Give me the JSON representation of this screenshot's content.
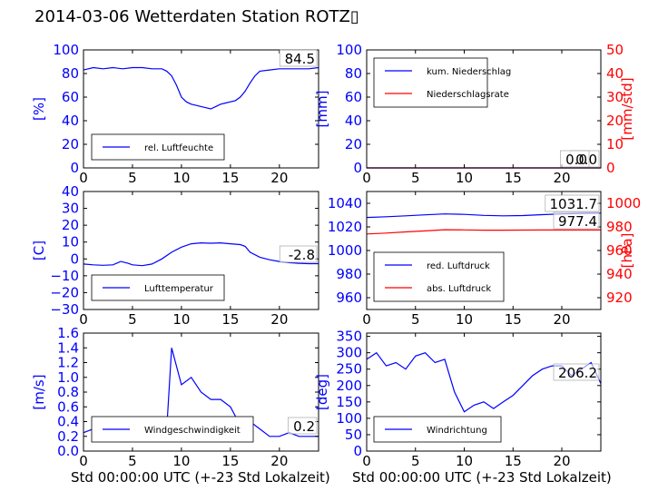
{
  "title": "2014-03-06 Wetterdaten Station ROTZ▯",
  "colors": {
    "blue": "#0000ff",
    "red": "#ff0000",
    "axis": "#000000"
  },
  "xlabel": "Std 00:00:00 UTC (+-23 Std Lokalzeit)",
  "chart_data": [
    {
      "id": "humidity",
      "type": "line",
      "xlim": [
        0,
        24
      ],
      "ylim": [
        0,
        100
      ],
      "xticks": [
        0,
        5,
        10,
        15,
        20
      ],
      "xtick_labels": [
        "0",
        "5",
        "10",
        "15",
        "20"
      ],
      "yticks": [
        0,
        20,
        40,
        60,
        80,
        100
      ],
      "ytick_labels": [
        "0",
        "20",
        "40",
        "60",
        "80",
        "100"
      ],
      "ylabel": "[%]",
      "ylabel_color": "blue",
      "series": [
        {
          "name": "rel. Luftfeuchte",
          "color": "blue",
          "x": [
            0,
            1,
            2,
            3,
            4,
            5,
            6,
            7,
            8,
            8.5,
            9,
            9.5,
            10,
            10.5,
            11,
            11.5,
            12,
            12.5,
            13,
            13.5,
            14,
            14.5,
            15,
            15.5,
            16,
            16.5,
            17,
            17.5,
            18,
            19,
            20,
            21,
            22,
            23,
            24
          ],
          "y": [
            83,
            85,
            84,
            85,
            84,
            85,
            85,
            84,
            84,
            82,
            78,
            70,
            60,
            56,
            54,
            53,
            52,
            51,
            50,
            52,
            54,
            55,
            56,
            57,
            60,
            65,
            72,
            78,
            82,
            83,
            84,
            84,
            84,
            84,
            85
          ]
        }
      ],
      "annotation": "84.5",
      "legend": "bottom-left"
    },
    {
      "id": "precip",
      "type": "line",
      "xlim": [
        0,
        24
      ],
      "ylim": [
        0,
        100
      ],
      "y2lim": [
        0,
        50
      ],
      "xticks": [
        0,
        5,
        10,
        15,
        20
      ],
      "xtick_labels": [
        "0",
        "5",
        "10",
        "15",
        "20"
      ],
      "yticks": [
        0,
        20,
        40,
        60,
        80,
        100
      ],
      "ytick_labels": [
        "0",
        "20",
        "40",
        "60",
        "80",
        "100"
      ],
      "y2ticks": [
        0,
        10,
        20,
        30,
        40,
        50
      ],
      "y2tick_labels": [
        "0",
        "10",
        "20",
        "30",
        "40",
        "50"
      ],
      "ylabel": "[mm]",
      "ylabel_color": "blue",
      "y2label": "[mm/std]",
      "y2label_color": "red",
      "series": [
        {
          "name": "kum. Niederschlag",
          "color": "blue",
          "axis": "left",
          "x": [
            0,
            24
          ],
          "y": [
            0,
            0
          ]
        },
        {
          "name": "Niederschlagsrate",
          "color": "red",
          "axis": "right",
          "x": [
            0,
            24
          ],
          "y": [
            0,
            0
          ]
        }
      ],
      "annotations": [
        "0.0",
        "0.0"
      ],
      "legend": "top-left"
    },
    {
      "id": "temperature",
      "type": "line",
      "xlim": [
        0,
        24
      ],
      "ylim": [
        -30,
        40
      ],
      "xticks": [
        0,
        5,
        10,
        15,
        20
      ],
      "xtick_labels": [
        "0",
        "5",
        "10",
        "15",
        "20"
      ],
      "yticks": [
        -30,
        -20,
        -10,
        0,
        10,
        20,
        30,
        40
      ],
      "ytick_labels": [
        "−30",
        "−20",
        "−10",
        "0",
        "10",
        "20",
        "30",
        "40"
      ],
      "ylabel": "[C]",
      "ylabel_color": "blue",
      "series": [
        {
          "name": "Lufttemperatur",
          "color": "blue",
          "x": [
            0,
            1,
            2,
            3,
            3.8,
            4.5,
            5,
            6,
            7,
            8,
            9,
            10,
            11,
            12,
            13,
            14,
            15,
            16,
            16.5,
            17,
            18,
            19,
            20,
            21,
            22,
            23,
            24
          ],
          "y": [
            -3,
            -3.5,
            -3.8,
            -3.5,
            -1.5,
            -2.5,
            -3.5,
            -4,
            -3,
            0,
            4,
            7,
            9,
            9.5,
            9.3,
            9.5,
            9,
            8.5,
            7.5,
            4,
            1,
            -0.5,
            -1.5,
            -2.2,
            -2.6,
            -2.8,
            -2.8
          ]
        }
      ],
      "annotation": "-2.8",
      "legend": "bottom-left"
    },
    {
      "id": "pressure",
      "type": "line",
      "xlim": [
        0,
        24
      ],
      "ylim": [
        950,
        1050
      ],
      "y2lim": [
        910,
        1010
      ],
      "xticks": [
        0,
        5,
        10,
        15,
        20
      ],
      "xtick_labels": [
        "0",
        "5",
        "10",
        "15",
        "20"
      ],
      "yticks": [
        960,
        980,
        1000,
        1020,
        1040
      ],
      "ytick_labels": [
        "960",
        "980",
        "1000",
        "1020",
        "1040"
      ],
      "y2ticks": [
        920,
        940,
        960,
        980,
        1000
      ],
      "y2tick_labels": [
        "920",
        "940",
        "960",
        "980",
        "1000"
      ],
      "ylabel": "",
      "y2label": "[hPa]",
      "y2label_color": "red",
      "series": [
        {
          "name": "red. Luftdruck",
          "color": "blue",
          "axis": "left",
          "x": [
            0,
            2,
            4,
            6,
            8,
            10,
            12,
            14,
            16,
            18,
            20,
            22,
            24
          ],
          "y": [
            1028,
            1028.6,
            1029.4,
            1030.2,
            1031,
            1030.6,
            1029.8,
            1029.4,
            1029.6,
            1030.4,
            1031,
            1031.4,
            1031.7
          ]
        },
        {
          "name": "abs. Luftdruck",
          "color": "red",
          "axis": "right",
          "x": [
            0,
            2,
            4,
            6,
            8,
            10,
            12,
            14,
            16,
            18,
            20,
            22,
            24
          ],
          "y": [
            974,
            974.8,
            975.8,
            976.6,
            977.6,
            977.5,
            977.2,
            977.2,
            977.3,
            977.4,
            977.4,
            977.4,
            977.4
          ]
        }
      ],
      "annotations": [
        "1031.7",
        "977.4"
      ],
      "legend": "bottom-left"
    },
    {
      "id": "wind_speed",
      "type": "line",
      "xlim": [
        0,
        24
      ],
      "ylim": [
        0,
        1.6
      ],
      "xticks": [
        0,
        5,
        10,
        15,
        20
      ],
      "xtick_labels": [
        "0",
        "5",
        "10",
        "15",
        "20"
      ],
      "yticks": [
        0,
        0.2,
        0.4,
        0.6,
        0.8,
        1.0,
        1.2,
        1.4,
        1.6
      ],
      "ytick_labels": [
        "0.0",
        "0.2",
        "0.4",
        "0.6",
        "0.8",
        "1.0",
        "1.2",
        "1.4",
        "1.6"
      ],
      "ylabel": "[m/s]",
      "ylabel_color": "blue",
      "series": [
        {
          "name": "Windgeschwindigkeit",
          "color": "blue",
          "x": [
            0,
            1,
            2,
            3,
            4,
            5,
            6,
            7,
            8,
            8.5,
            9,
            10,
            11,
            12,
            13,
            14,
            15,
            16,
            17,
            18,
            19,
            20,
            21,
            22,
            23,
            24
          ],
          "y": [
            0.25,
            0.3,
            0.2,
            0.25,
            0.4,
            0.2,
            0.25,
            0.2,
            0.25,
            0.3,
            1.4,
            0.9,
            1.0,
            0.8,
            0.7,
            0.7,
            0.6,
            0.35,
            0.4,
            0.3,
            0.2,
            0.2,
            0.25,
            0.2,
            0.2,
            0.2
          ]
        }
      ],
      "annotation": "0.2",
      "legend": "bottom-left"
    },
    {
      "id": "wind_dir",
      "type": "line",
      "xlim": [
        0,
        24
      ],
      "ylim": [
        0,
        360
      ],
      "xticks": [
        0,
        5,
        10,
        15,
        20
      ],
      "xtick_labels": [
        "0",
        "5",
        "10",
        "15",
        "20"
      ],
      "yticks": [
        0,
        50,
        100,
        150,
        200,
        250,
        300,
        350
      ],
      "ytick_labels": [
        "0",
        "50",
        "100",
        "150",
        "200",
        "250",
        "300",
        "350"
      ],
      "ylabel": "[deg]",
      "ylabel_color": "blue",
      "series": [
        {
          "name": "Windrichtung",
          "color": "blue",
          "x": [
            0,
            1,
            2,
            3,
            4,
            5,
            6,
            7,
            8,
            9,
            10,
            11,
            12,
            13,
            14,
            15,
            16,
            17,
            18,
            19,
            20,
            21,
            22,
            23,
            24
          ],
          "y": [
            280,
            300,
            260,
            270,
            250,
            290,
            300,
            270,
            280,
            180,
            120,
            140,
            150,
            130,
            150,
            170,
            200,
            230,
            250,
            260,
            260,
            230,
            250,
            270,
            206
          ]
        }
      ],
      "annotation": "206.2",
      "legend": "bottom-left"
    }
  ]
}
